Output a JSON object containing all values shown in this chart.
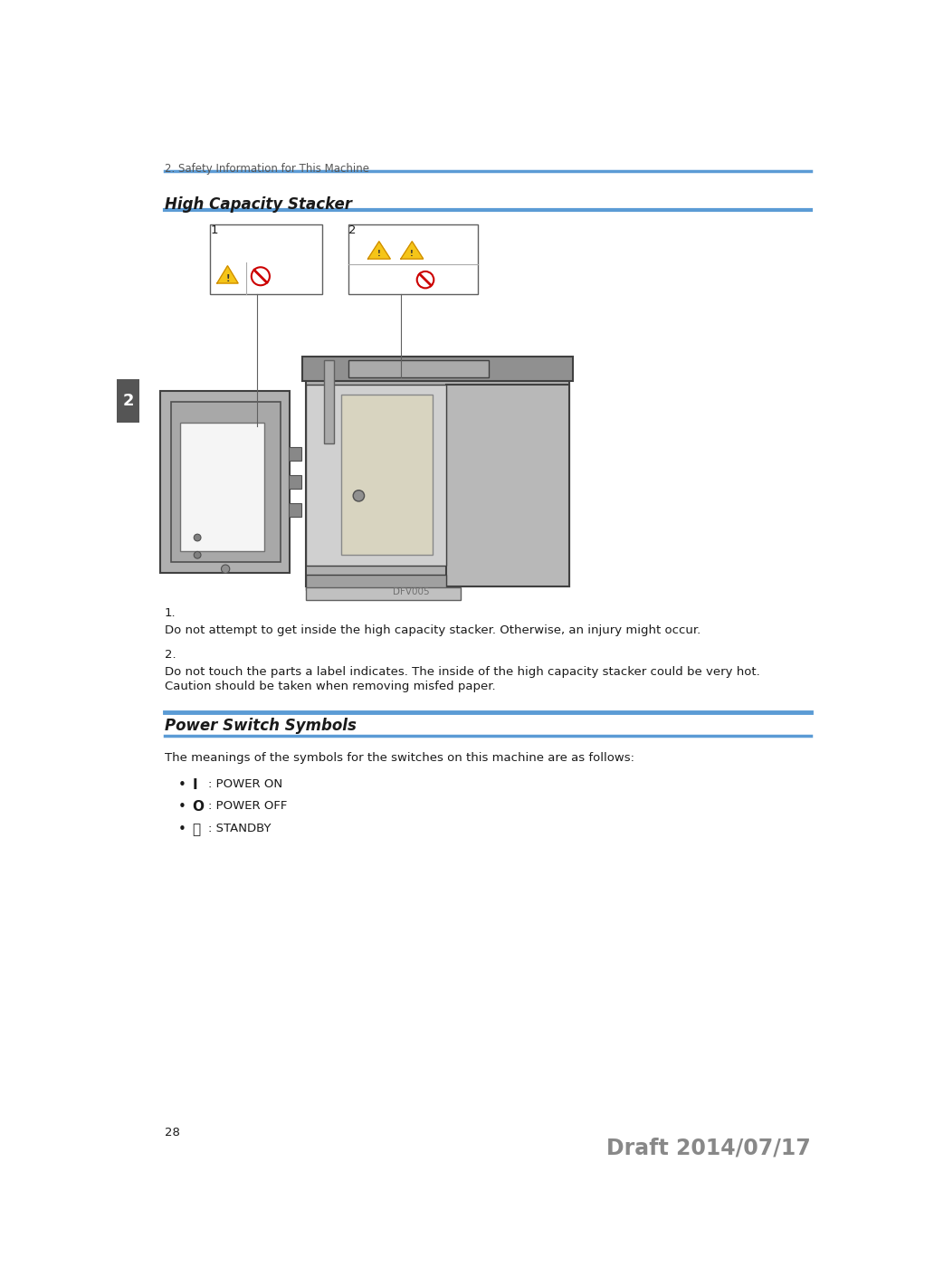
{
  "bg_color": "#ffffff",
  "header_text": "2. Safety Information for This Machine",
  "header_line_color": "#5b9bd5",
  "header_text_color": "#555555",
  "header_fontsize": 8.5,
  "section1_title": "High Capacity Stacker",
  "section1_title_fontsize": 12,
  "image_label": "DFV005",
  "item1_number": "1.",
  "item1_text": "Do not attempt to get inside the high capacity stacker. Otherwise, an injury might occur.",
  "item2_number": "2.",
  "item2_text_line1": "Do not touch the parts a label indicates. The inside of the high capacity stacker could be very hot.",
  "item2_text_line2": "Caution should be taken when removing misfed paper.",
  "section2_title": "Power Switch Symbols",
  "section2_title_fontsize": 12,
  "section2_line_color": "#5b9bd5",
  "intro_text": "The meanings of the symbols for the switches on this machine are as follows:",
  "bullet1_text": ": POWER ON",
  "bullet2_text": ": POWER OFF",
  "bullet3_text": ": STANDBY",
  "body_fontsize": 9.5,
  "page_number": "28",
  "draft_text": "Draft 2014/07/17",
  "draft_color": "#888888",
  "draft_fontsize": 17,
  "side_tab_color": "#555555",
  "side_tab_text": "2",
  "side_tab_text_color": "#ffffff",
  "text_color": "#1a1a1a",
  "machine_gray": "#b0b0b0",
  "machine_dark": "#404040",
  "machine_mid": "#909090",
  "machine_light": "#cccccc",
  "paper_color": "#d8d4c0",
  "white_panel": "#f5f5f5"
}
